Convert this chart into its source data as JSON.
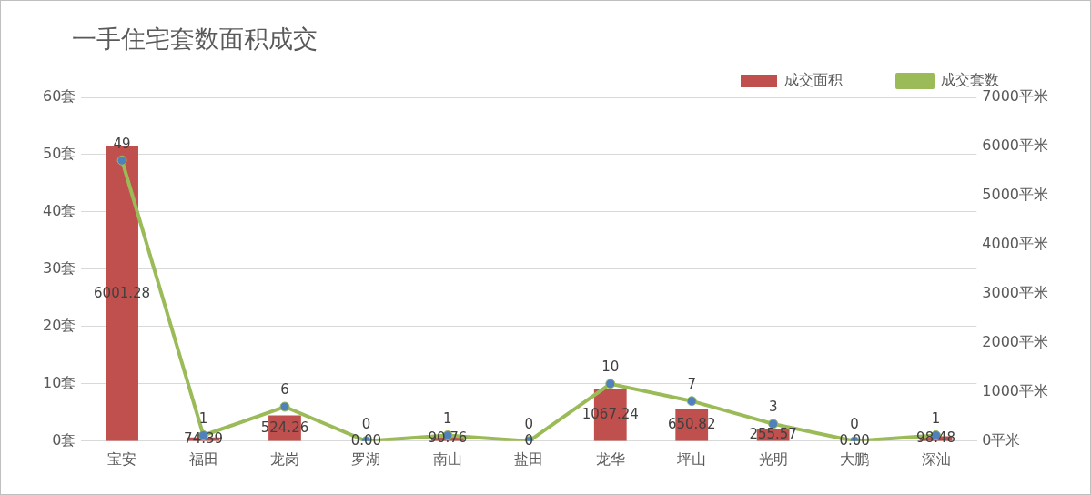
{
  "chart_data": {
    "type": "bar",
    "title": "一手住宅套数面积成交",
    "categories": [
      "宝安",
      "福田",
      "龙岗",
      "罗湖",
      "南山",
      "盐田",
      "龙华",
      "坪山",
      "光明",
      "大鹏",
      "深汕"
    ],
    "series": [
      {
        "name": "成交面积",
        "axis": "y2",
        "color": "#c0504d",
        "values": [
          6001.28,
          74.39,
          524.26,
          0,
          90.76,
          0,
          1067.24,
          650.82,
          255.57,
          0,
          98.48
        ],
        "value_labels": [
          "6001.28",
          "74.39",
          "524.26",
          "0.00",
          "90.76",
          "0",
          "1067.24",
          "650.82",
          "255.57",
          "0.00",
          "98.48"
        ]
      },
      {
        "name": "成交套数",
        "type": "line",
        "color": "#9bbb59",
        "marker": "circle",
        "values": [
          49,
          1,
          6,
          0,
          1,
          0,
          10,
          7,
          3,
          0,
          1
        ],
        "value_labels": [
          "49",
          "1",
          "6",
          "0",
          "1",
          "0",
          "10",
          "7",
          "3",
          "0",
          "1"
        ]
      }
    ],
    "ylim": [
      0,
      60
    ],
    "yticks": [
      {
        "value": 0,
        "label": "0套"
      },
      {
        "value": 10,
        "label": "10套"
      },
      {
        "value": 20,
        "label": "20套"
      },
      {
        "value": 30,
        "label": "30套"
      },
      {
        "value": 40,
        "label": "40套"
      },
      {
        "value": 50,
        "label": "50套"
      },
      {
        "value": 60,
        "label": "60套"
      }
    ],
    "y2lim": [
      0,
      7000
    ],
    "y2ticks": [
      {
        "value": 0,
        "label": "0平米"
      },
      {
        "value": 1000,
        "label": "1000平米"
      },
      {
        "value": 2000,
        "label": "2000平米"
      },
      {
        "value": 3000,
        "label": "3000平米"
      },
      {
        "value": 4000,
        "label": "4000平米"
      },
      {
        "value": 5000,
        "label": "5000平米"
      },
      {
        "value": 6000,
        "label": "6000平米"
      },
      {
        "value": 7000,
        "label": "7000平米"
      }
    ],
    "grid": "y",
    "legend": "top right"
  }
}
